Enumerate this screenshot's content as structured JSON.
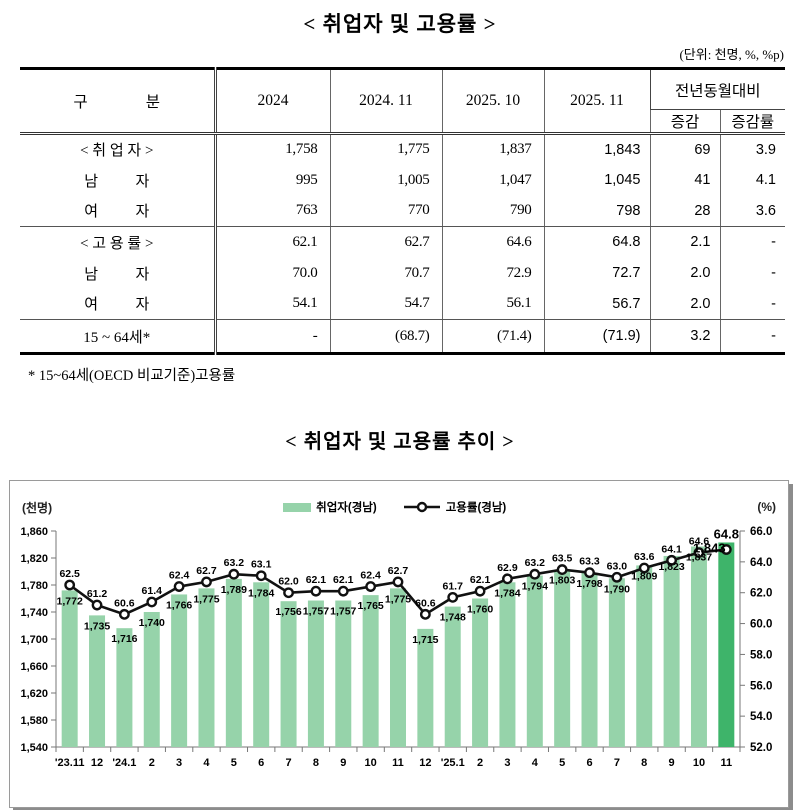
{
  "doc": {
    "table_title": "< 취업자 및 고용률 >",
    "unit_note": "(단위: 천명, %, %p)",
    "footnote": "* 15~64세(OECD 비교기준)고용률",
    "chart_title": "< 취업자 및 고용률 추이 >"
  },
  "table": {
    "col_headers": [
      "구               분",
      "2024",
      "2024. 11",
      "2025. 10",
      "2025. 11"
    ],
    "span_header": "전년동월대비",
    "sub_headers": [
      "증감",
      "증감률"
    ],
    "rows": [
      {
        "label": "< 취 업 자 >",
        "values": [
          "1,758",
          "1,775",
          "1,837",
          "1,843",
          "69",
          "3.9"
        ]
      },
      {
        "label": "남          자",
        "values": [
          "995",
          "1,005",
          "1,047",
          "1,045",
          "41",
          "4.1"
        ]
      },
      {
        "label": "여          자",
        "values": [
          "763",
          "770",
          "790",
          "798",
          "28",
          "3.6"
        ]
      },
      {
        "label": "< 고 용 률 >",
        "values": [
          "62.1",
          "62.7",
          "64.6",
          "64.8",
          "2.1",
          "-"
        ]
      },
      {
        "label": "남          자",
        "values": [
          "70.0",
          "70.7",
          "72.9",
          "72.7",
          "2.0",
          "-"
        ]
      },
      {
        "label": "여          자",
        "values": [
          "54.1",
          "54.7",
          "56.1",
          "56.7",
          "2.0",
          "-"
        ]
      },
      {
        "label": "15 ~ 64세*",
        "values": [
          "-",
          "(68.7)",
          "(71.4)",
          "(71.9)",
          "3.2",
          "-"
        ]
      }
    ]
  },
  "chart_data": {
    "type": "bar",
    "title": "< 취업자 및 고용률 추이 >",
    "categories": [
      "'23.11",
      "12",
      "'24.1",
      "2",
      "3",
      "4",
      "5",
      "6",
      "7",
      "8",
      "9",
      "10",
      "11",
      "12",
      "'25.1",
      "2",
      "3",
      "4",
      "5",
      "6",
      "7",
      "8",
      "9",
      "10",
      "11"
    ],
    "series": [
      {
        "name": "취업자(경남)",
        "type": "bar",
        "axis": "left",
        "values": [
          1772,
          1735,
          1716,
          1740,
          1766,
          1775,
          1789,
          1784,
          1756,
          1757,
          1757,
          1765,
          1775,
          1715,
          1748,
          1760,
          1784,
          1794,
          1803,
          1798,
          1790,
          1809,
          1823,
          1837,
          1843
        ],
        "color": "#96D3AA",
        "last_bar_color": "#3EB46A"
      },
      {
        "name": "고용률(경남)",
        "type": "line",
        "axis": "right",
        "values": [
          62.5,
          61.2,
          60.6,
          61.4,
          62.4,
          62.7,
          63.2,
          63.1,
          62.0,
          62.1,
          62.1,
          62.4,
          62.7,
          60.6,
          61.7,
          62.1,
          62.9,
          63.2,
          63.5,
          63.3,
          63.0,
          63.6,
          64.1,
          64.6,
          64.8
        ],
        "color": "#111111",
        "marker": "circle-open"
      }
    ],
    "left_axis": {
      "label": "(천명)",
      "min": 1540,
      "max": 1860,
      "step": 40
    },
    "right_axis": {
      "label": "(%)",
      "min": 52,
      "max": 66,
      "step": 2
    },
    "legend_position": "top-center",
    "grid": false,
    "highlight_last": true
  }
}
